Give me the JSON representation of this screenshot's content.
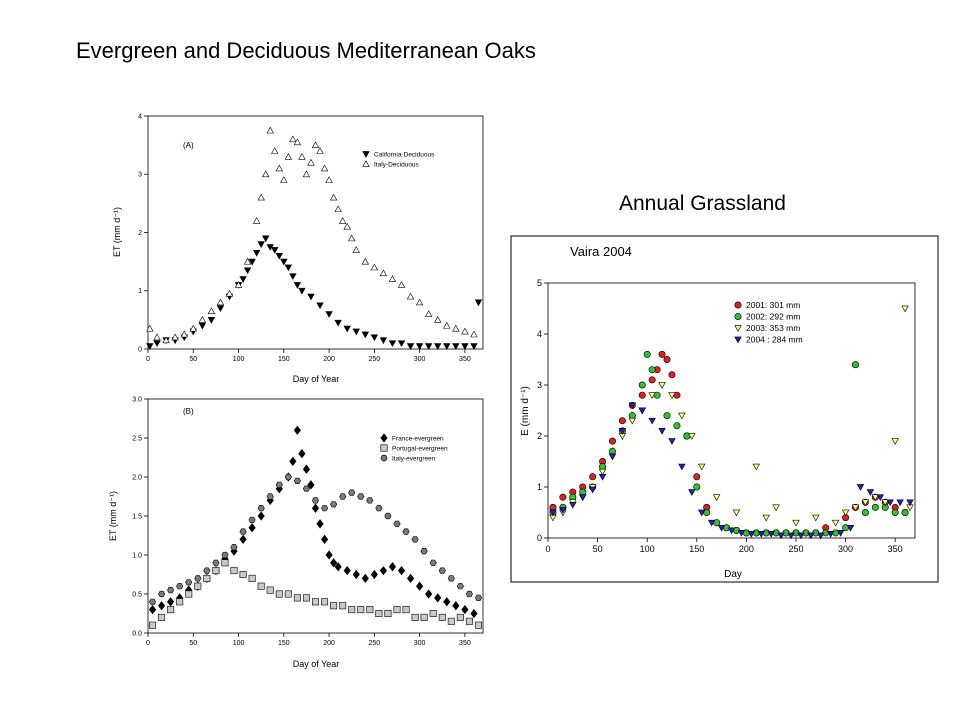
{
  "page_title": "Evergreen and Deciduous Mediterranean Oaks",
  "grassland_title": "Annual Grassland",
  "chart_data": [
    {
      "type": "scatter",
      "panel_label": "(A)",
      "xlabel": "Day of Year",
      "ylabel": "ET (mm d⁻¹)",
      "xlim": [
        0,
        370
      ],
      "ylim": [
        0,
        4
      ],
      "xticks": [
        0,
        50,
        100,
        150,
        200,
        250,
        300,
        350
      ],
      "yticks": [
        0,
        1,
        2,
        3,
        4
      ],
      "legend_position": "top-right",
      "series": [
        {
          "name": "California-Deciduous",
          "marker": "triangle-down",
          "color": "#000000",
          "x": [
            2,
            10,
            20,
            30,
            40,
            50,
            60,
            70,
            80,
            90,
            100,
            105,
            110,
            115,
            120,
            125,
            130,
            135,
            140,
            145,
            150,
            155,
            160,
            165,
            170,
            180,
            190,
            200,
            210,
            220,
            230,
            240,
            250,
            260,
            270,
            280,
            290,
            300,
            310,
            320,
            330,
            340,
            350,
            360,
            365
          ],
          "y": [
            0.05,
            0.1,
            0.15,
            0.15,
            0.2,
            0.3,
            0.4,
            0.5,
            0.7,
            0.9,
            1.1,
            1.2,
            1.35,
            1.5,
            1.65,
            1.8,
            1.9,
            1.75,
            1.7,
            1.6,
            1.5,
            1.4,
            1.25,
            1.1,
            1.0,
            0.9,
            0.75,
            0.6,
            0.45,
            0.35,
            0.3,
            0.25,
            0.2,
            0.15,
            0.1,
            0.1,
            0.05,
            0.05,
            0.05,
            0.05,
            0.05,
            0.05,
            0.05,
            0.05,
            0.8
          ]
        },
        {
          "name": "Italy-Deciduous",
          "marker": "triangle-up",
          "color": "#ffffff",
          "x": [
            2,
            10,
            20,
            30,
            40,
            50,
            60,
            70,
            80,
            90,
            100,
            110,
            120,
            125,
            130,
            135,
            140,
            145,
            150,
            155,
            160,
            165,
            170,
            175,
            180,
            185,
            190,
            195,
            200,
            205,
            210,
            215,
            220,
            225,
            230,
            240,
            250,
            260,
            270,
            280,
            290,
            300,
            310,
            320,
            330,
            340,
            350,
            360
          ],
          "y": [
            0.35,
            0.2,
            0.15,
            0.2,
            0.25,
            0.35,
            0.5,
            0.65,
            0.8,
            0.95,
            1.1,
            1.5,
            2.2,
            2.6,
            3.0,
            3.75,
            3.4,
            3.1,
            2.9,
            3.3,
            3.6,
            3.55,
            3.3,
            3.0,
            3.2,
            3.5,
            3.4,
            3.1,
            2.9,
            2.6,
            2.4,
            2.2,
            2.1,
            1.9,
            1.7,
            1.5,
            1.4,
            1.3,
            1.2,
            1.1,
            0.9,
            0.8,
            0.6,
            0.5,
            0.4,
            0.35,
            0.3,
            0.25
          ]
        }
      ]
    },
    {
      "type": "scatter",
      "panel_label": "(B)",
      "xlabel": "Day of Year",
      "ylabel": "ET (mm d⁻¹)",
      "xlim": [
        0,
        370
      ],
      "ylim": [
        0,
        3.0
      ],
      "xticks": [
        0,
        50,
        100,
        150,
        200,
        250,
        300,
        350
      ],
      "yticks": [
        0.0,
        0.5,
        1.0,
        1.5,
        2.0,
        2.5,
        3.0
      ],
      "legend_position": "top-right",
      "series": [
        {
          "name": "France-evergreen",
          "marker": "diamond",
          "color": "#000000",
          "x": [
            5,
            15,
            25,
            35,
            45,
            55,
            65,
            75,
            85,
            95,
            105,
            115,
            125,
            135,
            145,
            155,
            160,
            165,
            170,
            175,
            180,
            185,
            190,
            195,
            200,
            205,
            210,
            220,
            230,
            240,
            250,
            260,
            270,
            280,
            290,
            300,
            310,
            320,
            330,
            340,
            350,
            360
          ],
          "y": [
            0.3,
            0.35,
            0.4,
            0.45,
            0.55,
            0.6,
            0.7,
            0.8,
            0.95,
            1.05,
            1.2,
            1.35,
            1.5,
            1.7,
            1.85,
            2.0,
            2.2,
            2.6,
            2.3,
            2.1,
            1.9,
            1.6,
            1.4,
            1.2,
            1.0,
            0.9,
            0.85,
            0.8,
            0.75,
            0.7,
            0.75,
            0.8,
            0.85,
            0.8,
            0.7,
            0.6,
            0.5,
            0.45,
            0.4,
            0.35,
            0.3,
            0.25
          ]
        },
        {
          "name": "Portugal-evergreen",
          "marker": "square",
          "color": "#c8c8c8",
          "x": [
            5,
            15,
            25,
            35,
            45,
            55,
            65,
            75,
            85,
            95,
            105,
            115,
            125,
            135,
            145,
            155,
            165,
            175,
            185,
            195,
            205,
            215,
            225,
            235,
            245,
            255,
            265,
            275,
            285,
            295,
            305,
            315,
            325,
            335,
            345,
            355,
            365
          ],
          "y": [
            0.1,
            0.2,
            0.3,
            0.4,
            0.5,
            0.6,
            0.7,
            0.8,
            0.9,
            0.8,
            0.75,
            0.7,
            0.6,
            0.55,
            0.5,
            0.5,
            0.45,
            0.45,
            0.4,
            0.4,
            0.35,
            0.35,
            0.3,
            0.3,
            0.3,
            0.25,
            0.25,
            0.3,
            0.3,
            0.2,
            0.2,
            0.25,
            0.2,
            0.15,
            0.2,
            0.15,
            0.1
          ]
        },
        {
          "name": "Italy-evergreen",
          "marker": "hexagon",
          "color": "#7a7a7a",
          "x": [
            5,
            15,
            25,
            35,
            45,
            55,
            65,
            75,
            85,
            95,
            105,
            115,
            125,
            135,
            145,
            155,
            165,
            175,
            185,
            195,
            205,
            215,
            225,
            235,
            245,
            255,
            265,
            275,
            285,
            295,
            305,
            315,
            325,
            335,
            345,
            355,
            365
          ],
          "y": [
            0.4,
            0.5,
            0.55,
            0.6,
            0.65,
            0.7,
            0.8,
            0.9,
            1.0,
            1.1,
            1.3,
            1.45,
            1.6,
            1.75,
            1.9,
            2.0,
            1.95,
            1.85,
            1.7,
            1.6,
            1.65,
            1.75,
            1.8,
            1.75,
            1.7,
            1.6,
            1.5,
            1.4,
            1.3,
            1.2,
            1.05,
            0.9,
            0.8,
            0.7,
            0.6,
            0.5,
            0.45
          ]
        }
      ]
    },
    {
      "type": "scatter",
      "panel_label": "Vaira 2004",
      "xlabel": "Day",
      "ylabel": "E (mm d⁻¹)",
      "xlim": [
        0,
        370
      ],
      "ylim": [
        0,
        5
      ],
      "xticks": [
        0,
        50,
        100,
        150,
        200,
        250,
        300,
        350
      ],
      "yticks": [
        0,
        1,
        2,
        3,
        4,
        5
      ],
      "legend_position": "top-right",
      "series": [
        {
          "name": "2001: 301 mm",
          "marker": "circle",
          "color": "#e02020",
          "x": [
            5,
            15,
            25,
            35,
            45,
            55,
            65,
            75,
            85,
            95,
            105,
            110,
            115,
            120,
            125,
            130,
            140,
            150,
            160,
            170,
            180,
            190,
            200,
            210,
            220,
            230,
            240,
            250,
            260,
            270,
            280,
            300,
            310,
            320,
            330,
            340,
            350,
            360
          ],
          "y": [
            0.6,
            0.8,
            0.9,
            1.0,
            1.2,
            1.5,
            1.9,
            2.3,
            2.6,
            2.8,
            3.1,
            3.3,
            3.6,
            3.5,
            3.2,
            2.8,
            2.0,
            1.2,
            0.6,
            0.3,
            0.2,
            0.15,
            0.1,
            0.1,
            0.1,
            0.1,
            0.1,
            0.1,
            0.1,
            0.1,
            0.2,
            0.4,
            0.6,
            0.7,
            0.8,
            0.7,
            0.6,
            0.5
          ]
        },
        {
          "name": "2002:  292 mm",
          "marker": "circle",
          "color": "#30c030",
          "x": [
            5,
            15,
            25,
            35,
            45,
            55,
            65,
            75,
            85,
            95,
            100,
            105,
            110,
            120,
            130,
            140,
            150,
            160,
            170,
            180,
            190,
            200,
            210,
            220,
            230,
            240,
            250,
            260,
            270,
            280,
            290,
            300,
            310,
            320,
            330,
            340,
            350,
            360
          ],
          "y": [
            0.5,
            0.6,
            0.8,
            0.9,
            1.0,
            1.4,
            1.7,
            2.1,
            2.4,
            3.0,
            3.6,
            3.3,
            2.8,
            2.4,
            2.2,
            2.0,
            1.0,
            0.5,
            0.3,
            0.2,
            0.15,
            0.1,
            0.1,
            0.1,
            0.1,
            0.1,
            0.1,
            0.1,
            0.1,
            0.1,
            0.1,
            0.2,
            3.4,
            0.5,
            0.6,
            0.6,
            0.5,
            0.5
          ]
        },
        {
          "name": "2003:   353 mm",
          "marker": "triangle-down",
          "color": "#ffff80",
          "x": [
            5,
            15,
            25,
            35,
            45,
            55,
            65,
            75,
            85,
            95,
            105,
            115,
            125,
            135,
            145,
            155,
            170,
            190,
            210,
            220,
            230,
            250,
            270,
            290,
            300,
            310,
            320,
            330,
            340,
            350,
            360,
            365
          ],
          "y": [
            0.4,
            0.5,
            0.7,
            0.8,
            1.0,
            1.3,
            1.6,
            2.0,
            2.3,
            2.5,
            2.8,
            3.0,
            2.8,
            2.4,
            2.0,
            1.4,
            0.8,
            0.5,
            1.4,
            0.4,
            0.6,
            0.3,
            0.4,
            0.3,
            0.5,
            0.6,
            0.7,
            0.8,
            0.7,
            1.9,
            4.5,
            0.6
          ]
        },
        {
          "name": "2004 : 284 mm",
          "marker": "triangle-down",
          "color": "#2020c0",
          "x": [
            5,
            15,
            25,
            35,
            45,
            55,
            65,
            75,
            85,
            95,
            105,
            115,
            125,
            135,
            145,
            155,
            165,
            175,
            185,
            195,
            205,
            215,
            225,
            235,
            245,
            255,
            265,
            275,
            285,
            295,
            305,
            315,
            325,
            335,
            345,
            355,
            365
          ],
          "y": [
            0.5,
            0.55,
            0.65,
            0.8,
            0.95,
            1.2,
            1.6,
            2.1,
            2.6,
            2.5,
            2.3,
            2.1,
            1.9,
            1.4,
            0.9,
            0.5,
            0.3,
            0.2,
            0.15,
            0.1,
            0.08,
            0.08,
            0.08,
            0.05,
            0.05,
            0.05,
            0.05,
            0.05,
            0.08,
            0.1,
            0.2,
            1.0,
            0.9,
            0.8,
            0.7,
            0.7,
            0.7
          ]
        }
      ]
    }
  ]
}
